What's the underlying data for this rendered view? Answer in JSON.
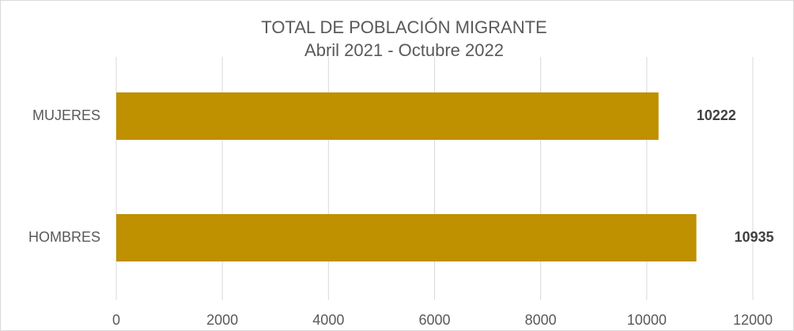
{
  "chart_data": {
    "type": "barh",
    "title": "TOTAL DE POBLACIÓN MIGRANTE",
    "subtitle": "Abril 2021 - Octubre 2022",
    "categories": [
      "MUJERES",
      "HOMBRES"
    ],
    "values": [
      10222,
      10935
    ],
    "color": "#bf9000",
    "xlim": [
      0,
      12000
    ],
    "xticks": [
      0,
      2000,
      4000,
      6000,
      8000,
      10000,
      12000
    ],
    "grid": true
  }
}
